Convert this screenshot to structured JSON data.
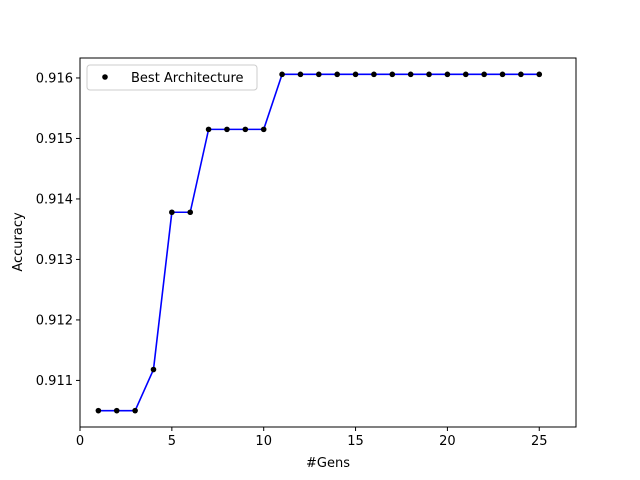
{
  "chart_data": {
    "type": "line",
    "title": "",
    "xlabel": "#Gens",
    "ylabel": "Accuracy",
    "xlim": [
      0,
      27
    ],
    "ylim": [
      0.91023,
      0.91633
    ],
    "xticks": [
      0,
      5,
      10,
      15,
      20,
      25
    ],
    "xtick_labels": [
      "0",
      "5",
      "10",
      "15",
      "20",
      "25"
    ],
    "yticks": [
      0.911,
      0.912,
      0.913,
      0.914,
      0.915,
      0.916
    ],
    "ytick_labels": [
      "0.911",
      "0.912",
      "0.913",
      "0.914",
      "0.915",
      "0.916"
    ],
    "grid": false,
    "legend_position": "upper-left",
    "series": [
      {
        "name": "Best Architecture",
        "line_color": "#0000ff",
        "marker_color": "#000000",
        "marker": "circle",
        "x": [
          1,
          2,
          3,
          4,
          5,
          6,
          7,
          8,
          9,
          10,
          11,
          12,
          13,
          14,
          15,
          16,
          17,
          18,
          19,
          20,
          21,
          22,
          23,
          24,
          25
        ],
        "y": [
          0.9105,
          0.9105,
          0.9105,
          0.91118,
          0.91378,
          0.91378,
          0.91515,
          0.91515,
          0.91515,
          0.91515,
          0.91606,
          0.91606,
          0.91606,
          0.91606,
          0.91606,
          0.91606,
          0.91606,
          0.91606,
          0.91606,
          0.91606,
          0.91606,
          0.91606,
          0.91606,
          0.91606,
          0.91606
        ]
      }
    ]
  }
}
